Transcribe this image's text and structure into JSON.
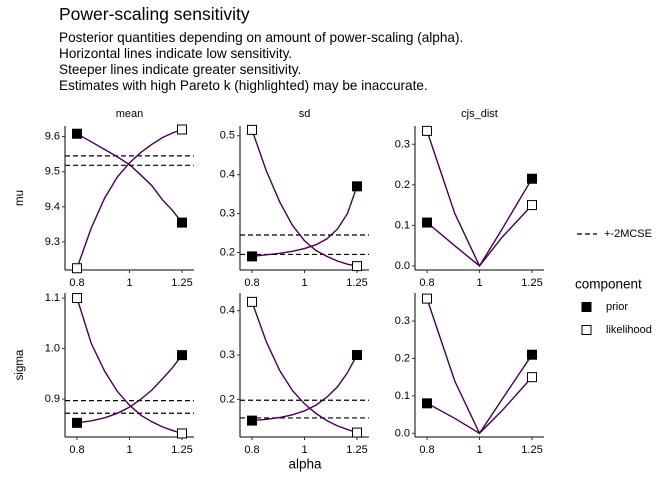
{
  "title": "Power-scaling sensitivity",
  "subtitle_lines": [
    "Posterior quantities depending on amount of power-scaling (alpha).",
    "Horizontal lines indicate low sensitivity.",
    "Steeper lines indicate greater sensitivity.",
    "Estimates with high Pareto k (highlighted) may be inaccurate."
  ],
  "colors": {
    "curve": "#440154",
    "ink": "#000000",
    "axis": "#333333"
  },
  "chart_data": {
    "type": "line",
    "xlabel": "alpha",
    "x_ticks": [
      "0.8",
      "1",
      "1.25"
    ],
    "x_scale": "log",
    "columns": [
      "mean",
      "sd",
      "cjs_dist"
    ],
    "rows": [
      "mu",
      "sigma"
    ],
    "legend": {
      "mcse_label": "+-2MCSE",
      "component_title": "component",
      "components": [
        "prior",
        "likelihood"
      ]
    },
    "panels": [
      {
        "row": "mu",
        "col": "mean",
        "ylim": [
          9.22,
          9.63
        ],
        "y_ticks": [
          9.3,
          9.4,
          9.5,
          9.6
        ],
        "y_tick_labels": [
          "9.3",
          "9.4",
          "9.5",
          "9.6"
        ],
        "mcse": [
          9.518,
          9.545
        ],
        "series": [
          {
            "component": "prior",
            "x": [
              0.8,
              0.85,
              0.9,
              0.95,
              1.0,
              1.05,
              1.1,
              1.15,
              1.2,
              1.25
            ],
            "y": [
              9.608,
              9.585,
              9.563,
              9.542,
              9.52,
              9.49,
              9.46,
              9.42,
              9.39,
              9.355
            ]
          },
          {
            "component": "likelihood",
            "x": [
              0.8,
              0.85,
              0.9,
              0.95,
              1.0,
              1.05,
              1.1,
              1.15,
              1.2,
              1.25
            ],
            "y": [
              9.225,
              9.34,
              9.425,
              9.485,
              9.525,
              9.555,
              9.578,
              9.597,
              9.61,
              9.62
            ]
          }
        ]
      },
      {
        "row": "mu",
        "col": "sd",
        "ylim": [
          0.155,
          0.525
        ],
        "y_ticks": [
          0.2,
          0.3,
          0.4,
          0.5
        ],
        "y_tick_labels": [
          "0.2",
          "0.3",
          "0.4",
          "0.5"
        ],
        "mcse": [
          0.195,
          0.245
        ],
        "series": [
          {
            "component": "prior",
            "x": [
              0.8,
              0.85,
              0.9,
              0.95,
              1.0,
              1.05,
              1.1,
              1.15,
              1.2,
              1.25
            ],
            "y": [
              0.19,
              0.194,
              0.198,
              0.203,
              0.21,
              0.22,
              0.235,
              0.26,
              0.3,
              0.37
            ]
          },
          {
            "component": "likelihood",
            "x": [
              0.8,
              0.85,
              0.9,
              0.95,
              1.0,
              1.05,
              1.1,
              1.15,
              1.2,
              1.25
            ],
            "y": [
              0.515,
              0.41,
              0.33,
              0.27,
              0.23,
              0.205,
              0.19,
              0.178,
              0.17,
              0.165
            ]
          }
        ]
      },
      {
        "row": "mu",
        "col": "cjs_dist",
        "ylim": [
          -0.01,
          0.345
        ],
        "y_ticks": [
          0.0,
          0.1,
          0.2,
          0.3
        ],
        "y_tick_labels": [
          "0.0",
          "0.1",
          "0.2",
          "0.3"
        ],
        "mcse": null,
        "series": [
          {
            "component": "prior",
            "x": [
              0.8,
              0.9,
              1.0,
              1.1,
              1.25
            ],
            "y": [
              0.107,
              0.05,
              0.0,
              0.09,
              0.215
            ]
          },
          {
            "component": "likelihood",
            "x": [
              0.8,
              0.9,
              1.0,
              1.1,
              1.25
            ],
            "y": [
              0.333,
              0.13,
              0.0,
              0.07,
              0.15
            ]
          }
        ]
      },
      {
        "row": "sigma",
        "col": "mean",
        "ylim": [
          0.825,
          1.11
        ],
        "y_ticks": [
          0.9,
          1.0,
          1.1
        ],
        "y_tick_labels": [
          "0.9",
          "1.0",
          "1.1"
        ],
        "mcse": [
          0.872,
          0.897
        ],
        "series": [
          {
            "component": "prior",
            "x": [
              0.8,
              0.85,
              0.9,
              0.95,
              1.0,
              1.05,
              1.1,
              1.15,
              1.2,
              1.25
            ],
            "y": [
              0.853,
              0.857,
              0.863,
              0.872,
              0.884,
              0.9,
              0.918,
              0.94,
              0.962,
              0.987
            ]
          },
          {
            "component": "likelihood",
            "x": [
              0.8,
              0.85,
              0.9,
              0.95,
              1.0,
              1.05,
              1.1,
              1.15,
              1.2,
              1.25
            ],
            "y": [
              1.1,
              1.01,
              0.955,
              0.915,
              0.888,
              0.868,
              0.855,
              0.845,
              0.838,
              0.832
            ]
          }
        ]
      },
      {
        "row": "sigma",
        "col": "sd",
        "ylim": [
          0.115,
          0.44
        ],
        "y_ticks": [
          0.2,
          0.3,
          0.4
        ],
        "y_tick_labels": [
          "0.2",
          "0.3",
          "0.4"
        ],
        "mcse": [
          0.158,
          0.198
        ],
        "series": [
          {
            "component": "prior",
            "x": [
              0.8,
              0.85,
              0.9,
              0.95,
              1.0,
              1.05,
              1.1,
              1.15,
              1.2,
              1.25
            ],
            "y": [
              0.152,
              0.155,
              0.159,
              0.165,
              0.174,
              0.187,
              0.205,
              0.228,
              0.26,
              0.3
            ]
          },
          {
            "component": "likelihood",
            "x": [
              0.8,
              0.85,
              0.9,
              0.95,
              1.0,
              1.05,
              1.1,
              1.15,
              1.2,
              1.25
            ],
            "y": [
              0.42,
              0.33,
              0.265,
              0.22,
              0.19,
              0.168,
              0.152,
              0.14,
              0.132,
              0.125
            ]
          }
        ]
      },
      {
        "row": "sigma",
        "col": "cjs_dist",
        "ylim": [
          -0.01,
          0.375
        ],
        "y_ticks": [
          0.0,
          0.1,
          0.2,
          0.3
        ],
        "y_tick_labels": [
          "0.0",
          "0.1",
          "0.2",
          "0.3"
        ],
        "mcse": null,
        "series": [
          {
            "component": "prior",
            "x": [
              0.8,
              0.9,
              1.0,
              1.1,
              1.25
            ],
            "y": [
              0.08,
              0.04,
              0.0,
              0.09,
              0.21
            ]
          },
          {
            "component": "likelihood",
            "x": [
              0.8,
              0.9,
              1.0,
              1.1,
              1.25
            ],
            "y": [
              0.36,
              0.14,
              0.0,
              0.06,
              0.15
            ]
          }
        ]
      }
    ]
  }
}
